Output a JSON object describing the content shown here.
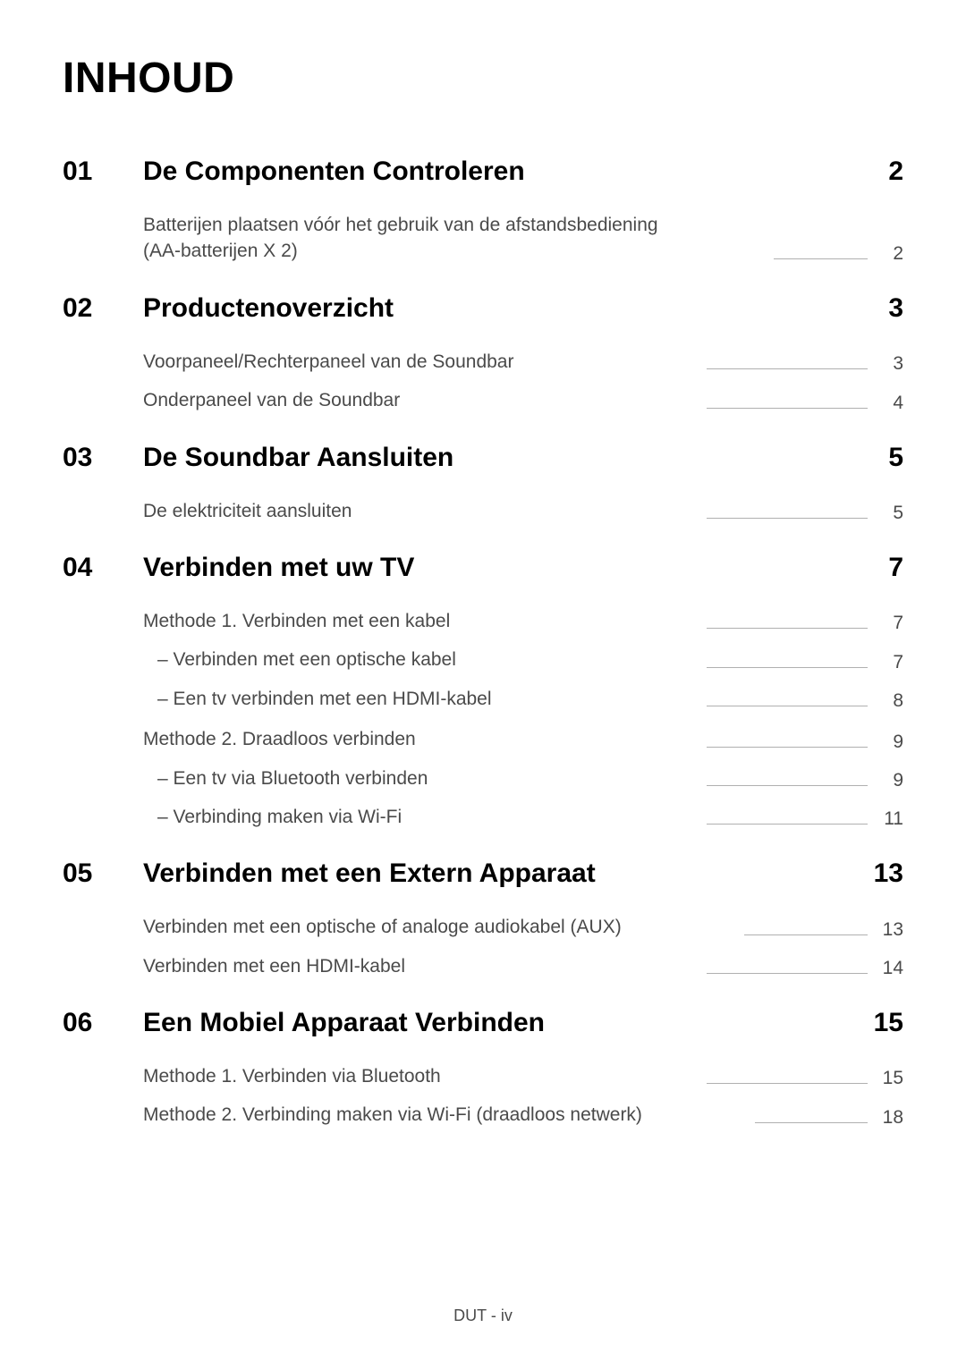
{
  "title": "INHOUD",
  "footer": "DUT - iv",
  "colors": {
    "text_primary": "#000000",
    "text_secondary": "#4a4a4a",
    "leader_line": "#b0b0b0",
    "background": "#ffffff"
  },
  "typography": {
    "title_fontsize": 48,
    "section_fontsize": 30,
    "entry_fontsize": 21,
    "footer_fontsize": 18
  },
  "sections": [
    {
      "number": "01",
      "title": "De Componenten Controleren",
      "page": "2",
      "entries": [
        {
          "text": "Batterijen plaatsen vóór het gebruik van de afstandsbediening (AA-batterijen X 2)",
          "page": "2",
          "sub": false
        }
      ]
    },
    {
      "number": "02",
      "title": "Productenoverzicht",
      "page": "3",
      "entries": [
        {
          "text": "Voorpaneel/Rechterpaneel van de Soundbar",
          "page": "3",
          "sub": false
        },
        {
          "text": "Onderpaneel van de Soundbar",
          "page": "4",
          "sub": false
        }
      ]
    },
    {
      "number": "03",
      "title": "De Soundbar Aansluiten",
      "page": "5",
      "entries": [
        {
          "text": "De elektriciteit aansluiten",
          "page": "5",
          "sub": false
        }
      ]
    },
    {
      "number": "04",
      "title": "Verbinden met uw TV",
      "page": "7",
      "entries": [
        {
          "text": "Methode 1. Verbinden met een kabel",
          "page": "7",
          "sub": false
        },
        {
          "text": "Verbinden met een optische kabel",
          "page": "7",
          "sub": true
        },
        {
          "text": "Een tv verbinden met een HDMI-kabel",
          "page": "8",
          "sub": true
        },
        {
          "text": "Methode 2. Draadloos verbinden",
          "page": "9",
          "sub": false,
          "gap": true
        },
        {
          "text": "Een tv via Bluetooth verbinden",
          "page": "9",
          "sub": true
        },
        {
          "text": "Verbinding maken via Wi-Fi",
          "page": "11",
          "sub": true
        }
      ]
    },
    {
      "number": "05",
      "title": "Verbinden met een Extern Apparaat",
      "page": "13",
      "entries": [
        {
          "text": "Verbinden met een optische of analoge audiokabel (AUX)",
          "page": "13",
          "sub": false
        },
        {
          "text": "Verbinden met een HDMI-kabel",
          "page": "14",
          "sub": false
        }
      ]
    },
    {
      "number": "06",
      "title": "Een Mobiel Apparaat Verbinden",
      "page": "15",
      "entries": [
        {
          "text": "Methode 1. Verbinden via Bluetooth",
          "page": "15",
          "sub": false
        },
        {
          "text": "Methode 2. Verbinding maken via Wi-Fi (draadloos netwerk)",
          "page": "18",
          "sub": false
        }
      ]
    }
  ]
}
